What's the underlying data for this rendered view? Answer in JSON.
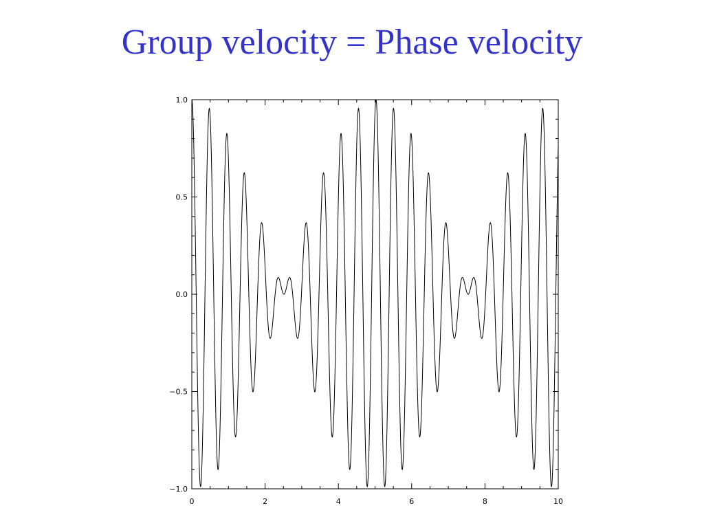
{
  "slide": {
    "title": "Group velocity = Phase velocity"
  },
  "chart_data": {
    "type": "line",
    "title": "",
    "xlabel": "",
    "ylabel": "",
    "xlim": [
      0,
      10
    ],
    "ylim": [
      -1.0,
      1.0
    ],
    "xticks": [
      0,
      2,
      4,
      6,
      8,
      10
    ],
    "yticks": [
      -1.0,
      -0.5,
      0.0,
      0.5,
      1.0
    ],
    "xtick_labels": [
      "0",
      "2",
      "4",
      "6",
      "8",
      "10"
    ],
    "ytick_labels": [
      "−1.0",
      "−0.5",
      "0.0",
      "0.5",
      "1.0"
    ],
    "grid": false,
    "series": [
      {
        "function": "0.5*cos(12.5*x) + 0.5*cos(13.75*x)",
        "x_range": [
          0,
          10
        ],
        "color": "#000000"
      }
    ]
  }
}
